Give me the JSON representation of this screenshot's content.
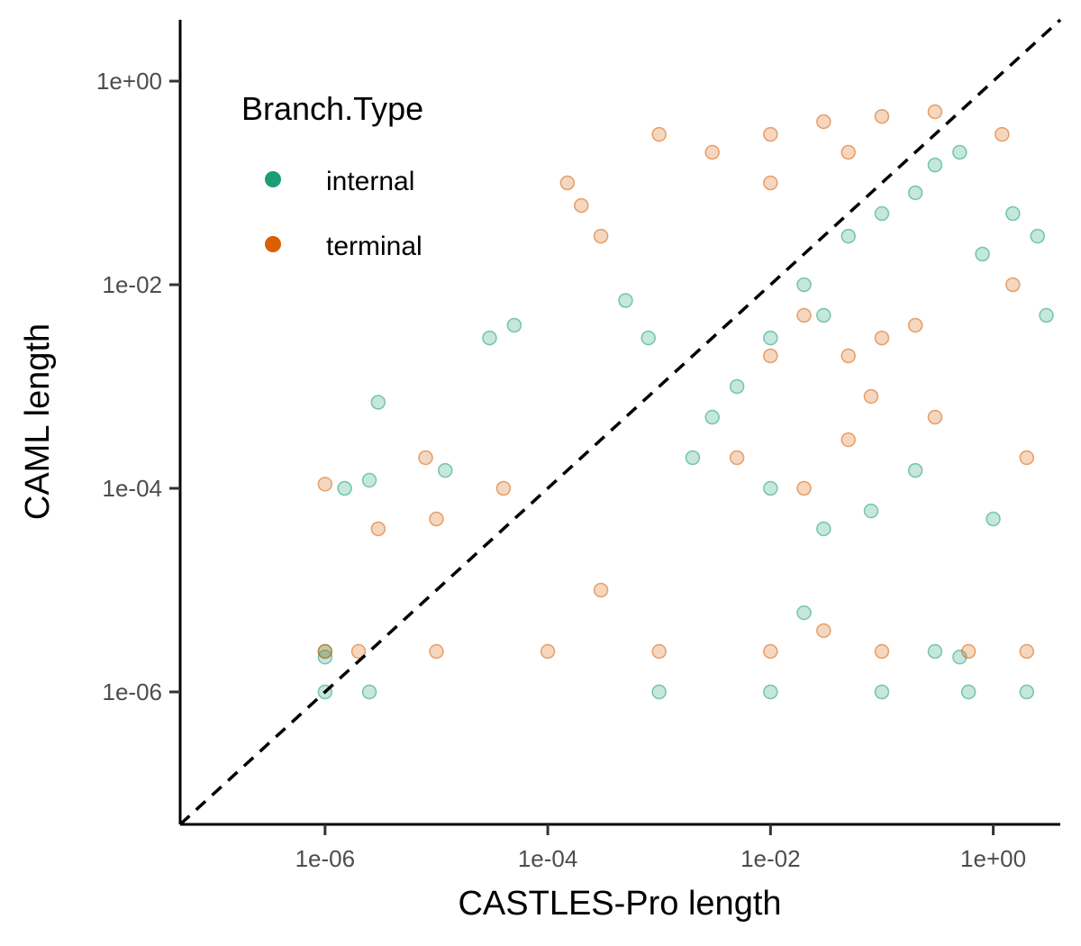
{
  "chart_data": {
    "type": "scatter",
    "title": "",
    "xlabel": "CASTLES-Pro length",
    "ylabel": "CAML length",
    "x_scale": "log10",
    "y_scale": "log10",
    "xlim": [
      5e-08,
      4
    ],
    "ylim": [
      5e-08,
      4
    ],
    "x_ticks": [
      1e-06,
      0.0001,
      0.01,
      1
    ],
    "x_tick_labels": [
      "1e-06",
      "1e-04",
      "1e-02",
      "1e+00"
    ],
    "y_ticks": [
      1e-06,
      0.0001,
      0.01,
      1
    ],
    "y_tick_labels": [
      "1e-06",
      "1e-04",
      "1e-02",
      "1e+00"
    ],
    "grid": false,
    "reference_line": {
      "type": "y=x",
      "style": "dashed",
      "color": "#000000"
    },
    "legend": {
      "title": "Branch.Type",
      "placement": "top-left"
    },
    "series": [
      {
        "name": "internal",
        "color": "#1b9e77",
        "points": [
          [
            1e-06,
            2.2e-06
          ],
          [
            1e-06,
            2.5e-06
          ],
          [
            1.5e-06,
            0.0001
          ],
          [
            2.5e-06,
            0.00012
          ],
          [
            3e-06,
            0.0007
          ],
          [
            2.5e-06,
            1e-06
          ],
          [
            1e-06,
            1e-06
          ],
          [
            0.3,
            2.5e-06
          ],
          [
            0.5,
            2.2e-06
          ],
          [
            1.2e-05,
            0.00015
          ],
          [
            0.0005,
            0.007
          ],
          [
            3e-05,
            0.003
          ],
          [
            5e-05,
            0.004
          ],
          [
            0.0008,
            0.003
          ],
          [
            0.02,
            6e-06
          ],
          [
            0.05,
            0.03
          ],
          [
            0.1,
            0.05
          ],
          [
            0.2,
            0.08
          ],
          [
            0.3,
            0.15
          ],
          [
            0.5,
            0.2
          ],
          [
            0.02,
            0.01
          ],
          [
            0.03,
            0.005
          ],
          [
            0.01,
            0.003
          ],
          [
            0.005,
            0.001
          ],
          [
            0.003,
            0.0005
          ],
          [
            0.002,
            0.0002
          ],
          [
            0.01,
            0.0001
          ],
          [
            0.03,
            4e-05
          ],
          [
            0.08,
            6e-05
          ],
          [
            0.2,
            0.00015
          ],
          [
            1.5,
            0.05
          ],
          [
            2.5,
            0.03
          ],
          [
            3,
            0.005
          ],
          [
            0.8,
            0.02
          ],
          [
            1.0,
            5e-05
          ],
          [
            0.001,
            1e-06
          ],
          [
            0.01,
            1e-06
          ],
          [
            0.1,
            1e-06
          ],
          [
            0.6,
            1e-06
          ],
          [
            2,
            1e-06
          ]
        ]
      },
      {
        "name": "terminal",
        "color": "#d95f02",
        "points": [
          [
            1e-06,
            0.00011
          ],
          [
            1e-06,
            2.5e-06
          ],
          [
            2e-06,
            2.5e-06
          ],
          [
            3e-06,
            4e-05
          ],
          [
            1e-05,
            5e-05
          ],
          [
            0.00015,
            0.1
          ],
          [
            0.0002,
            0.06
          ],
          [
            0.0003,
            0.03
          ],
          [
            0.001,
            0.3
          ],
          [
            0.003,
            0.2
          ],
          [
            0.01,
            0.3
          ],
          [
            0.03,
            0.4
          ],
          [
            0.1,
            0.45
          ],
          [
            0.3,
            0.5
          ],
          [
            0.01,
            0.1
          ],
          [
            0.05,
            0.2
          ],
          [
            0.02,
            0.005
          ],
          [
            0.05,
            0.002
          ],
          [
            0.1,
            0.003
          ],
          [
            0.2,
            0.004
          ],
          [
            0.01,
            0.002
          ],
          [
            0.005,
            0.0002
          ],
          [
            0.02,
            0.0001
          ],
          [
            0.05,
            0.0003
          ],
          [
            0.3,
            0.0005
          ],
          [
            1.5,
            0.01
          ],
          [
            2,
            0.0002
          ],
          [
            1.2,
            0.3
          ],
          [
            0.0003,
            1e-05
          ],
          [
            0.03,
            4e-06
          ],
          [
            1e-05,
            2.5e-06
          ],
          [
            0.0001,
            2.5e-06
          ],
          [
            0.001,
            2.5e-06
          ],
          [
            0.01,
            2.5e-06
          ],
          [
            0.1,
            2.5e-06
          ],
          [
            0.6,
            2.5e-06
          ],
          [
            2,
            2.5e-06
          ],
          [
            8e-06,
            0.0002
          ],
          [
            4e-05,
            0.0001
          ],
          [
            0.08,
            0.0008
          ]
        ]
      }
    ]
  }
}
